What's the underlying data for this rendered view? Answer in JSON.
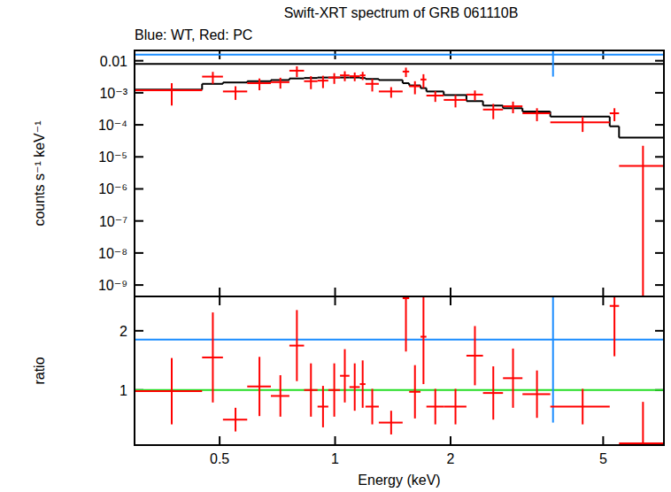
{
  "chart_data": [
    {
      "type": "scatter",
      "title": "Swift-XRT spectrum of GRB 061110B",
      "subtitle": "Blue: WT, Red: PC",
      "y_label": "counts s⁻¹ keV⁻¹",
      "log": true,
      "tick_labels": "y",
      "xlim": [
        0.3,
        7.2
      ],
      "ylim": [
        4.4e-10,
        0.021
      ],
      "xticks": [
        0.5,
        1,
        2,
        5
      ],
      "yticks": [
        0.01,
        {
          "value": 0.001,
          "label": "10⁻³"
        },
        {
          "value": 0.0001,
          "label": "10⁻⁴"
        },
        {
          "value": 1e-05,
          "label": "10⁻⁵"
        },
        {
          "value": 1e-06,
          "label": "10⁻⁶"
        },
        {
          "value": 1e-07,
          "label": "10⁻⁷"
        },
        {
          "value": 1e-08,
          "label": "10⁻⁸"
        },
        {
          "value": 1e-09,
          "label": "10⁻⁹"
        }
      ],
      "series": [
        {
          "type": "step",
          "color": "#000000",
          "bins": [
            0.3,
            10
          ],
          "values": [
            0.008
          ]
        },
        {
          "type": "step",
          "color": "#000000",
          "bins": [
            0.3,
            0.45,
            0.51,
            0.59,
            0.68,
            0.76,
            0.83,
            0.9,
            0.96,
            1.03,
            1.09,
            1.16,
            1.2,
            1.3,
            1.5,
            1.56,
            1.67,
            1.73,
            1.92,
            2.2,
            2.43,
            2.74,
            3.08,
            3.64,
            5.2,
            5.5,
            7.2
          ],
          "values": [
            0.00125,
            0.0019,
            0.0021,
            0.0023,
            0.0025,
            0.0028,
            0.0029,
            0.003,
            0.003,
            0.003,
            0.003,
            0.0029,
            0.0027,
            0.0025,
            0.002,
            0.0017,
            0.0014,
            0.0011,
            0.00085,
            0.00055,
            0.0004,
            0.00033,
            0.00026,
            0.00018,
            9e-05,
            4e-05
          ]
        },
        {
          "type": "scatter",
          "color": "#1a8cff",
          "x": [
            3.7
          ],
          "x_low": [
            0.3
          ],
          "x_high": [
            10
          ],
          "values": [
            0.0155
          ],
          "errors": [
            0.0123
          ]
        },
        {
          "type": "scatter",
          "color": "#ff0000",
          "bins": [
            0.3,
            0.45,
            0.51,
            0.59,
            0.68,
            0.76,
            0.83,
            0.9,
            0.96,
            1.03,
            1.09,
            1.16,
            1.2,
            1.3,
            1.5,
            1.56,
            1.67,
            1.73,
            1.92,
            2.2,
            2.43,
            2.74,
            3.08,
            3.64,
            5.2,
            5.5,
            7.2
          ],
          "values": [
            0.0012,
            0.0032,
            0.0011,
            0.002,
            0.00215,
            0.0049,
            0.0023,
            0.0024,
            0.003,
            0.0035,
            0.0033,
            0.0035,
            0.0019,
            0.0011,
            0.0046,
            0.0016,
            0.0026,
            0.00082,
            0.0006,
            0.00088,
            0.0003,
            0.00038,
            0.00023,
            0.00012,
            0.00023,
            5.2e-06
          ],
          "errors": [
            0.0008,
            0.0013,
            0.0005,
            0.0008,
            0.0008,
            0.0018,
            0.001,
            0.001,
            0.0011,
            0.0012,
            0.001,
            0.001,
            0.0008,
            0.0004,
            0.0015,
            0.0007,
            0.0012,
            0.0003,
            0.00025,
            0.0003,
            0.00015,
            0.00015,
            0.0001,
            6e-05,
            0.0001,
            1.7e-05
          ]
        }
      ]
    },
    {
      "type": "scatter",
      "x_label": "Energy (keV)",
      "y_label": "ratio",
      "log": "x",
      "xlim": [
        0.3,
        7.2
      ],
      "ylim": [
        0.07,
        2.58
      ],
      "xticks": [
        0.5,
        1,
        2,
        5
      ],
      "yticks": [
        1,
        2
      ],
      "series": [
        {
          "type": "line",
          "color": "#22dd22",
          "x": [
            0.3,
            10
          ],
          "values": [
            1,
            1
          ]
        },
        {
          "type": "scatter",
          "color": "#1a8cff",
          "x": [
            3.7
          ],
          "x_low": [
            0.3
          ],
          "x_high": [
            10
          ],
          "values": [
            1.85
          ],
          "errors": [
            1.4
          ]
        },
        {
          "type": "scatter",
          "color": "#ff0000",
          "bins": [
            0.3,
            0.45,
            0.51,
            0.59,
            0.68,
            0.76,
            0.83,
            0.9,
            0.96,
            1.03,
            1.09,
            1.16,
            1.2,
            1.3,
            1.5,
            1.56,
            1.67,
            1.73,
            1.92,
            2.2,
            2.43,
            2.74,
            3.08,
            3.64,
            5.2,
            5.5,
            7.2
          ],
          "values": [
            0.98,
            1.55,
            0.5,
            1.06,
            0.9,
            1.75,
            1.0,
            0.72,
            1.0,
            1.24,
            1.05,
            1.1,
            0.72,
            0.45,
            2.55,
            0.97,
            1.9,
            0.72,
            0.72,
            1.58,
            0.95,
            1.2,
            0.93,
            0.72,
            2.42,
            0.1
          ],
          "errors": [
            0.56,
            0.76,
            0.2,
            0.5,
            0.35,
            0.6,
            0.45,
            0.35,
            0.45,
            0.45,
            0.4,
            0.4,
            0.3,
            0.2,
            0.9,
            0.45,
            0.8,
            0.3,
            0.3,
            0.5,
            0.45,
            0.5,
            0.4,
            0.3,
            0.85,
            0.7
          ]
        }
      ]
    }
  ]
}
